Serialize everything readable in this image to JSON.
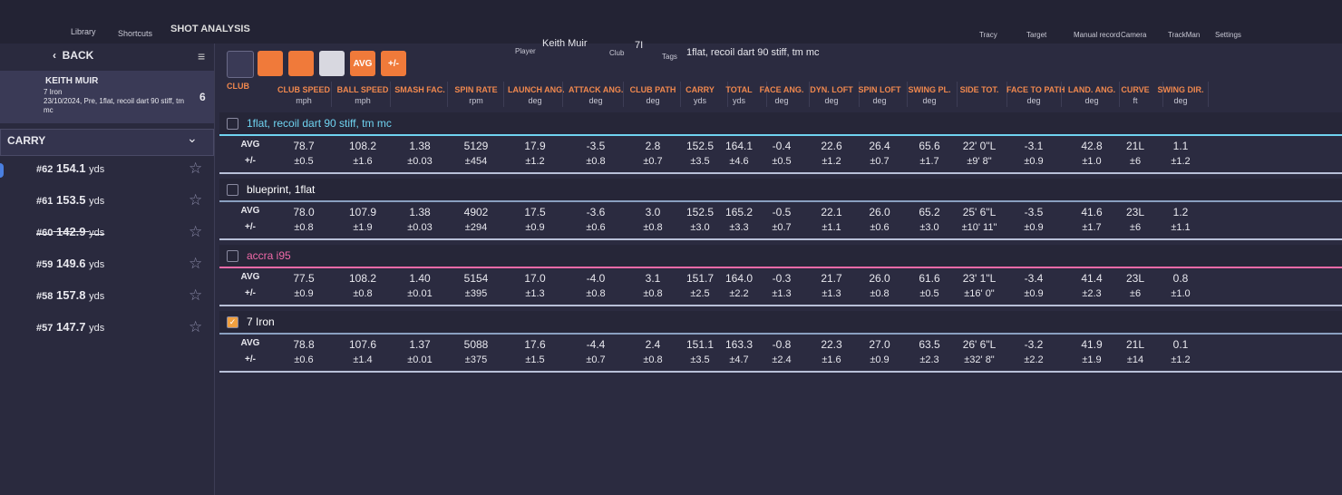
{
  "nav": {
    "items": [
      "Library",
      "Shortcuts"
    ],
    "title": "SHOT ANALYSIS",
    "player": "Keith Muir",
    "player_label": "Player",
    "club": "7I",
    "club_label": "Club",
    "tags": "1flat, recoil dart 90 stiff, tm mc",
    "tags_label": "Tags",
    "right": [
      "Tracy",
      "Target",
      "Manual record",
      "Camera",
      "TrackMan",
      "Settings"
    ]
  },
  "sidebar": {
    "back": "BACK",
    "player": "KEITH MUIR",
    "club": "7 Iron",
    "session": "23/10/2024, Pre, 1flat, recoil dart 90 stiff, tm mc",
    "count": "6",
    "sort": "CARRY",
    "shots": [
      {
        "id": "#62",
        "carry": "154.1",
        "unit": "yds",
        "excluded": false,
        "selected": true
      },
      {
        "id": "#61",
        "carry": "153.5",
        "unit": "yds",
        "excluded": false,
        "selected": false
      },
      {
        "id": "#60",
        "carry": "142.9",
        "unit": "yds",
        "excluded": true,
        "selected": false
      },
      {
        "id": "#59",
        "carry": "149.6",
        "unit": "yds",
        "excluded": false,
        "selected": false
      },
      {
        "id": "#58",
        "carry": "157.8",
        "unit": "yds",
        "excluded": false,
        "selected": false
      },
      {
        "id": "#57",
        "carry": "147.7",
        "unit": "yds",
        "excluded": false,
        "selected": false
      }
    ]
  },
  "toolbar": {
    "avg": "AVG",
    "spread": "+/-"
  },
  "table": {
    "columns": [
      {
        "name": "CLUB SPEED",
        "unit": "mph"
      },
      {
        "name": "BALL SPEED",
        "unit": "mph"
      },
      {
        "name": "SMASH FAC."
      },
      {
        "name": "SPIN RATE",
        "unit": "rpm"
      },
      {
        "name": "LAUNCH ANG.",
        "unit": "deg"
      },
      {
        "name": "ATTACK ANG.",
        "unit": "deg"
      },
      {
        "name": "CLUB PATH",
        "unit": "deg"
      },
      {
        "name": "CARRY",
        "unit": "yds"
      },
      {
        "name": "TOTAL",
        "unit": "yds"
      },
      {
        "name": "FACE ANG.",
        "unit": "deg"
      },
      {
        "name": "DYN. LOFT",
        "unit": "deg"
      },
      {
        "name": "SPIN LOFT",
        "unit": "deg"
      },
      {
        "name": "SWING PL.",
        "unit": "deg"
      },
      {
        "name": "SIDE TOT."
      },
      {
        "name": "FACE TO PATH",
        "unit": "deg"
      },
      {
        "name": "LAND. ANG.",
        "unit": "deg"
      },
      {
        "name": "CURVE",
        "unit": "ft"
      },
      {
        "name": "SWING DIR.",
        "unit": "deg"
      }
    ],
    "club_header": "CLUB",
    "row_labels": [
      "AVG",
      "+/-"
    ],
    "groups": [
      {
        "name": "1flat, recoil dart 90 stiff, tm mc",
        "color": "#6fd3f0",
        "checked": false,
        "avg": [
          "78.7",
          "108.2",
          "1.38",
          "5129",
          "17.9",
          "-3.5",
          "2.8",
          "152.5",
          "164.1",
          "-0.4",
          "22.6",
          "26.4",
          "65.6",
          "22' 0\"L",
          "-3.1",
          "42.8",
          "21L",
          "1.1"
        ],
        "spread": [
          "±0.5",
          "±1.6",
          "±0.03",
          "±454",
          "±1.2",
          "±0.8",
          "±0.7",
          "±3.5",
          "±4.6",
          "±0.5",
          "±1.2",
          "±0.7",
          "±1.7",
          "±9' 8\"",
          "±0.9",
          "±1.0",
          "±6",
          "±1.2"
        ]
      },
      {
        "name": "blueprint, 1flat",
        "color": "#ffffff",
        "checked": false,
        "avg": [
          "78.0",
          "107.9",
          "1.38",
          "4902",
          "17.5",
          "-3.6",
          "3.0",
          "152.5",
          "165.2",
          "-0.5",
          "22.1",
          "26.0",
          "65.2",
          "25' 6\"L",
          "-3.5",
          "41.6",
          "23L",
          "1.2"
        ],
        "spread": [
          "±0.8",
          "±1.9",
          "±0.03",
          "±294",
          "±0.9",
          "±0.6",
          "±0.8",
          "±3.0",
          "±3.3",
          "±0.7",
          "±1.1",
          "±0.6",
          "±3.0",
          "±10' 11\"",
          "±0.9",
          "±1.7",
          "±6",
          "±1.1"
        ]
      },
      {
        "name": "accra i95",
        "color": "#f06aa8",
        "checked": false,
        "avg": [
          "77.5",
          "108.2",
          "1.40",
          "5154",
          "17.0",
          "-4.0",
          "3.1",
          "151.7",
          "164.0",
          "-0.3",
          "21.7",
          "26.0",
          "61.6",
          "23' 1\"L",
          "-3.4",
          "41.4",
          "23L",
          "0.8"
        ],
        "spread": [
          "±0.9",
          "±0.8",
          "±0.01",
          "±395",
          "±1.3",
          "±0.8",
          "±0.8",
          "±2.5",
          "±2.2",
          "±1.3",
          "±1.3",
          "±0.8",
          "±0.5",
          "±16' 0\"",
          "±0.9",
          "±2.3",
          "±6",
          "±1.0"
        ]
      },
      {
        "name": "7 Iron",
        "color": "#ffffff",
        "checked": true,
        "avg": [
          "78.8",
          "107.6",
          "1.37",
          "5088",
          "17.6",
          "-4.4",
          "2.4",
          "151.1",
          "163.3",
          "-0.8",
          "22.3",
          "27.0",
          "63.5",
          "26' 6\"L",
          "-3.2",
          "41.9",
          "21L",
          "0.1"
        ],
        "spread": [
          "±0.6",
          "±1.4",
          "±0.01",
          "±375",
          "±1.5",
          "±0.7",
          "±0.8",
          "±3.5",
          "±4.7",
          "±2.4",
          "±1.6",
          "±0.9",
          "±2.3",
          "±32' 8\"",
          "±2.2",
          "±1.9",
          "±14",
          "±1.2"
        ]
      }
    ]
  }
}
